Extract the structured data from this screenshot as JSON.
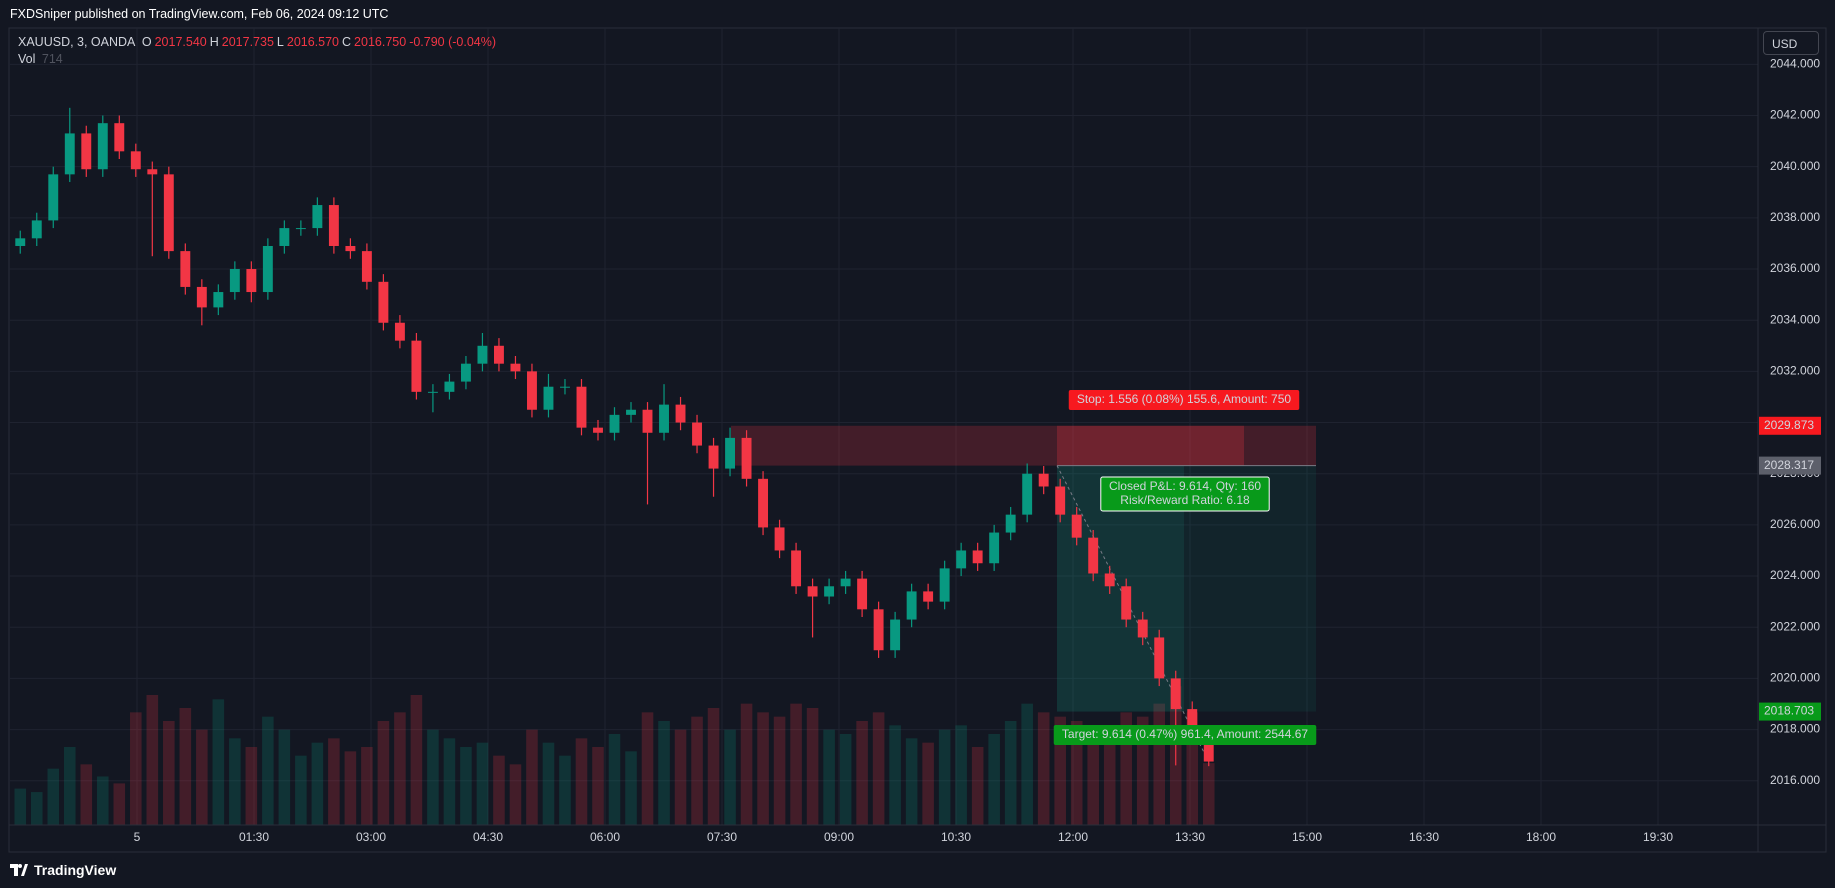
{
  "header": {
    "publisher": "FXDSniper published on TradingView.com, Feb 06, 2024 09:12 UTC"
  },
  "legend": {
    "symbol": "XAUUSD, 3, OANDA",
    "ohlc": [
      {
        "key": "O",
        "value": "2017.540"
      },
      {
        "key": "H",
        "value": "2017.735"
      },
      {
        "key": "L",
        "value": "2016.570"
      },
      {
        "key": "C",
        "value": "2016.750"
      }
    ],
    "change": "-0.790 (-0.04%)",
    "vol_label": "Vol",
    "vol_value": 714
  },
  "currency": "USD",
  "footer": "TradingView",
  "chart_data": {
    "type": "candlestick",
    "open": [
      2036.9,
      2037.2,
      2037.9,
      2039.7,
      2041.3,
      2039.9,
      2041.7,
      2040.6,
      2039.9,
      2039.7,
      2036.7,
      2035.3,
      2034.5,
      2035.1,
      2036.0,
      2035.1,
      2036.9,
      2037.6,
      2037.6,
      2038.5,
      2036.9,
      2036.7,
      2035.5,
      2033.9,
      2033.2,
      2031.2,
      2031.2,
      2031.6,
      2032.3,
      2033.0,
      2032.3,
      2032.0,
      2030.5,
      2031.4,
      2031.4,
      2029.8,
      2029.6,
      2030.3,
      2030.5,
      2029.6,
      2030.7,
      2030.0,
      2029.1,
      2028.2,
      2029.4,
      2027.8,
      2025.9,
      2025.0,
      2023.6,
      2023.2,
      2023.6,
      2023.9,
      2022.7,
      2021.1,
      2022.3,
      2023.4,
      2023.0,
      2024.3,
      2025.0,
      2024.5,
      2025.7,
      2026.4,
      2028.0,
      2027.5,
      2026.4,
      2025.5,
      2024.1,
      2023.6,
      2022.3,
      2021.6,
      2020.0,
      2018.8,
      2017.54
    ],
    "high": [
      2037.5,
      2038.2,
      2040.0,
      2042.3,
      2041.6,
      2042.0,
      2042.0,
      2040.9,
      2040.2,
      2040.0,
      2037.0,
      2035.6,
      2035.4,
      2036.3,
      2036.3,
      2037.2,
      2037.9,
      2037.9,
      2038.8,
      2038.8,
      2037.2,
      2037.0,
      2035.8,
      2034.2,
      2033.5,
      2031.5,
      2031.9,
      2032.6,
      2033.5,
      2033.3,
      2032.6,
      2032.3,
      2031.9,
      2031.7,
      2031.7,
      2030.1,
      2030.6,
      2030.8,
      2030.8,
      2031.5,
      2031.0,
      2030.3,
      2029.4,
      2029.8,
      2029.7,
      2028.1,
      2026.2,
      2025.3,
      2023.9,
      2023.9,
      2024.2,
      2024.2,
      2023.0,
      2022.6,
      2023.7,
      2023.7,
      2024.6,
      2025.3,
      2025.3,
      2026.0,
      2026.7,
      2028.4,
      2028.3,
      2027.8,
      2026.7,
      2025.8,
      2024.4,
      2023.9,
      2022.6,
      2021.9,
      2020.3,
      2019.1,
      2017.735
    ],
    "low": [
      2036.6,
      2036.9,
      2037.6,
      2039.4,
      2039.6,
      2039.6,
      2040.3,
      2039.6,
      2036.5,
      2036.4,
      2035.0,
      2033.8,
      2034.2,
      2034.8,
      2034.7,
      2034.8,
      2036.6,
      2037.3,
      2037.3,
      2036.6,
      2036.4,
      2035.2,
      2033.6,
      2032.9,
      2030.9,
      2030.4,
      2030.9,
      2031.3,
      2032.0,
      2032.0,
      2031.7,
      2030.2,
      2030.2,
      2031.1,
      2029.5,
      2029.3,
      2029.3,
      2030.0,
      2026.8,
      2029.3,
      2029.7,
      2028.8,
      2027.1,
      2027.9,
      2027.5,
      2025.6,
      2024.7,
      2023.3,
      2021.6,
      2022.9,
      2023.3,
      2022.4,
      2020.8,
      2020.8,
      2022.0,
      2022.7,
      2022.7,
      2024.0,
      2024.2,
      2024.2,
      2025.4,
      2026.1,
      2027.2,
      2026.1,
      2025.2,
      2023.8,
      2023.3,
      2022.0,
      2021.3,
      2019.7,
      2016.6,
      2017.4,
      2016.57
    ],
    "close": [
      2037.2,
      2037.9,
      2039.7,
      2041.3,
      2039.9,
      2041.7,
      2040.6,
      2039.9,
      2039.7,
      2036.7,
      2035.3,
      2034.5,
      2035.1,
      2036.0,
      2035.1,
      2036.9,
      2037.6,
      2037.6,
      2038.5,
      2036.9,
      2036.7,
      2035.5,
      2033.9,
      2033.2,
      2031.2,
      2031.2,
      2031.6,
      2032.3,
      2033.0,
      2032.3,
      2032.0,
      2030.5,
      2031.4,
      2031.4,
      2029.8,
      2029.6,
      2030.3,
      2030.5,
      2029.6,
      2030.7,
      2030.0,
      2029.1,
      2028.2,
      2029.4,
      2027.8,
      2025.9,
      2025.0,
      2023.6,
      2023.2,
      2023.6,
      2023.9,
      2022.7,
      2021.1,
      2022.3,
      2023.4,
      2023.0,
      2024.3,
      2025.0,
      2024.5,
      2025.7,
      2026.4,
      2028.0,
      2027.5,
      2026.4,
      2025.5,
      2024.1,
      2023.6,
      2022.3,
      2021.6,
      2020.0,
      2018.8,
      2017.7,
      2016.75
    ],
    "volume": [
      420,
      380,
      650,
      900,
      700,
      560,
      480,
      1300,
      1500,
      1200,
      1350,
      1100,
      1450,
      1000,
      900,
      1250,
      1100,
      800,
      950,
      1000,
      850,
      900,
      1200,
      1300,
      1500,
      1100,
      1000,
      900,
      950,
      800,
      700,
      1100,
      950,
      800,
      1000,
      900,
      1050,
      850,
      1300,
      1200,
      1100,
      1250,
      1350,
      1100,
      1400,
      1300,
      1250,
      1400,
      1350,
      1100,
      1050,
      1200,
      1300,
      1150,
      1000,
      950,
      1100,
      1150,
      900,
      1050,
      1200,
      1400,
      1300,
      1250,
      1200,
      1150,
      1100,
      1300,
      1250,
      1400,
      1600,
      1300,
      714
    ],
    "volume_lim": [
      0,
      3000
    ],
    "ylim": [
      2014.27,
      2045.42
    ],
    "yticks": [
      {
        "value": 2016,
        "label": "2016.000"
      },
      {
        "value": 2018,
        "label": "2018.000"
      },
      {
        "value": 2020,
        "label": "2020.000"
      },
      {
        "value": 2022,
        "label": "2022.000"
      },
      {
        "value": 2024,
        "label": "2024.000"
      },
      {
        "value": 2026,
        "label": "2026.000"
      },
      {
        "value": 2028,
        "label": "2028.000"
      },
      {
        "value": 2030,
        "label": "2030.000"
      },
      {
        "value": 2032,
        "label": "2032.000"
      },
      {
        "value": 2034,
        "label": "2034.000"
      },
      {
        "value": 2036,
        "label": "2036.000"
      },
      {
        "value": 2038,
        "label": "2038.000"
      },
      {
        "value": 2040,
        "label": "2040.000"
      },
      {
        "value": 2042,
        "label": "2042.000"
      },
      {
        "value": 2044,
        "label": "2044.000"
      }
    ],
    "xtick_labels": [
      "5",
      "01:30",
      "03:00",
      "04:30",
      "06:00",
      "07:30",
      "09:00",
      "10:30",
      "12:00",
      "13:30",
      "15:00",
      "16:30",
      "18:00",
      "19:30"
    ],
    "grid": true,
    "colors": {
      "up": "#089981",
      "down": "#f23645"
    },
    "position": {
      "stop": 2029.873,
      "entry": 2028.317,
      "target": 2018.703,
      "stop_label": "Stop: 1.556 (0.08%) 155.6, Amount: 750",
      "pnl_label": "Closed P&L: 9.614, Qty: 160",
      "rr_label": "Risk/Reward Ratio: 6.18",
      "target_label": "Target: 9.614 (0.47%) 961.4, Amount: 2544.67"
    }
  }
}
